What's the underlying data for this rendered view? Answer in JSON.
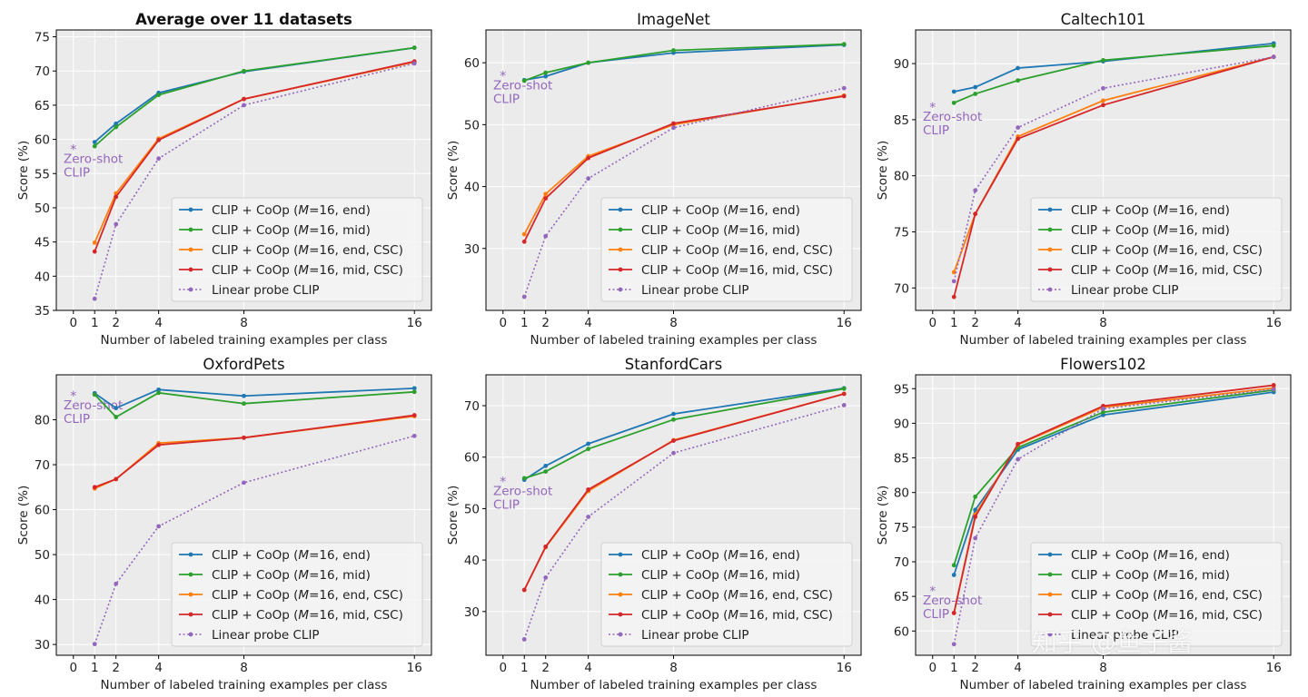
{
  "figure": {
    "colors": {
      "end": "#1f77b4",
      "mid": "#2ca02c",
      "end_csc": "#ff7f0e",
      "mid_csc": "#d62728",
      "linear": "#9467bd",
      "zeroshot": "#9467bd",
      "panel_bg": "#ebebeb",
      "grid": "#ffffff"
    },
    "watermark": "知乎 @鱼子酱"
  },
  "chart_data": [
    {
      "type": "line",
      "title": "Average over 11 datasets",
      "title_bold": true,
      "xlabel": "Number of labeled training examples per class",
      "ylabel": "Score (%)",
      "x": [
        1,
        2,
        4,
        8,
        16
      ],
      "xticks": [
        0,
        1,
        2,
        4,
        8,
        16
      ],
      "yticks": [
        35,
        40,
        45,
        50,
        55,
        60,
        65,
        70,
        75
      ],
      "ylim": [
        35,
        76
      ],
      "zero_shot": {
        "value": 58.8,
        "label": [
          "Zero-shot",
          "CLIP"
        ]
      },
      "legend_loc": "lower-right",
      "series": [
        {
          "key": "end",
          "name": "CLIP + CoOp (M=16, end)",
          "values": [
            59.6,
            62.3,
            66.8,
            69.9,
            73.4
          ]
        },
        {
          "key": "mid",
          "name": "CLIP + CoOp (M=16, mid)",
          "values": [
            59.0,
            61.8,
            66.5,
            70.0,
            73.4
          ]
        },
        {
          "key": "end_csc",
          "name": "CLIP + CoOp (M=16, end, CSC)",
          "values": [
            44.9,
            52.1,
            60.1,
            65.9,
            71.3
          ]
        },
        {
          "key": "mid_csc",
          "name": "CLIP + CoOp (M=16, mid, CSC)",
          "values": [
            43.6,
            51.6,
            59.9,
            65.9,
            71.4
          ]
        },
        {
          "key": "linear",
          "name": "Linear probe CLIP",
          "dashed": true,
          "values": [
            36.7,
            47.6,
            57.2,
            65.0,
            71.1
          ]
        }
      ]
    },
    {
      "type": "line",
      "title": "ImageNet",
      "title_bold": false,
      "xlabel": "Number of labeled training examples per class",
      "ylabel": "Score (%)",
      "x": [
        1,
        2,
        4,
        8,
        16
      ],
      "xticks": [
        0,
        1,
        2,
        4,
        8,
        16
      ],
      "yticks": [
        30,
        40,
        50,
        60
      ],
      "ylim": [
        20,
        65.3
      ],
      "zero_shot": {
        "value": 58.2,
        "label": [
          "Zero-shot",
          "CLIP"
        ]
      },
      "legend_loc": "lower-right",
      "series": [
        {
          "key": "end",
          "name": "CLIP + CoOp (M=16, end)",
          "values": [
            57.2,
            57.8,
            60.0,
            61.6,
            62.9
          ]
        },
        {
          "key": "mid",
          "name": "CLIP + CoOp (M=16, mid)",
          "values": [
            57.1,
            58.4,
            60.0,
            62.0,
            63.0
          ]
        },
        {
          "key": "end_csc",
          "name": "CLIP + CoOp (M=16, end, CSC)",
          "values": [
            32.3,
            38.8,
            44.9,
            50.0,
            54.7
          ]
        },
        {
          "key": "mid_csc",
          "name": "CLIP + CoOp (M=16, mid, CSC)",
          "values": [
            31.1,
            38.1,
            44.6,
            50.2,
            54.6
          ]
        },
        {
          "key": "linear",
          "name": "Linear probe CLIP",
          "dashed": true,
          "values": [
            22.2,
            32.0,
            41.3,
            49.5,
            55.9
          ]
        }
      ]
    },
    {
      "type": "line",
      "title": "Caltech101",
      "title_bold": false,
      "xlabel": "Number of labeled training examples per class",
      "ylabel": "Score (%)",
      "x": [
        1,
        2,
        4,
        8,
        16
      ],
      "xticks": [
        0,
        1,
        2,
        4,
        8,
        16
      ],
      "yticks": [
        70,
        75,
        80,
        85,
        90
      ],
      "ylim": [
        68,
        93
      ],
      "zero_shot": {
        "value": 86.3,
        "label": [
          "Zero-shot",
          "CLIP"
        ]
      },
      "legend_loc": "lower-right",
      "series": [
        {
          "key": "end",
          "name": "CLIP + CoOp (M=16, end)",
          "values": [
            87.5,
            87.9,
            89.6,
            90.2,
            91.8
          ]
        },
        {
          "key": "mid",
          "name": "CLIP + CoOp (M=16, mid)",
          "values": [
            86.5,
            87.3,
            88.5,
            90.3,
            91.6
          ]
        },
        {
          "key": "end_csc",
          "name": "CLIP + CoOp (M=16, end, CSC)",
          "values": [
            71.4,
            76.6,
            83.5,
            86.7,
            90.6
          ]
        },
        {
          "key": "mid_csc",
          "name": "CLIP + CoOp (M=16, mid, CSC)",
          "values": [
            69.2,
            76.6,
            83.3,
            86.3,
            90.6
          ]
        },
        {
          "key": "linear",
          "name": "Linear probe CLIP",
          "dashed": true,
          "values": [
            70.6,
            78.7,
            84.3,
            87.8,
            90.6
          ]
        }
      ]
    },
    {
      "type": "line",
      "title": "OxfordPets",
      "title_bold": false,
      "xlabel": "Number of labeled training examples per class",
      "ylabel": "Score (%)",
      "x": [
        1,
        2,
        4,
        8,
        16
      ],
      "xticks": [
        0,
        1,
        2,
        4,
        8,
        16
      ],
      "yticks": [
        30,
        40,
        50,
        60,
        70,
        80
      ],
      "ylim": [
        27.6,
        90
      ],
      "zero_shot": {
        "value": 85.8,
        "label": [
          "Zero-shot",
          "CLIP"
        ]
      },
      "legend_loc": "lower-right",
      "series": [
        {
          "key": "end",
          "name": "CLIP + CoOp (M=16, end)",
          "values": [
            85.9,
            82.6,
            86.7,
            85.3,
            87.0
          ]
        },
        {
          "key": "mid",
          "name": "CLIP + CoOp (M=16, mid)",
          "values": [
            85.6,
            80.6,
            86.0,
            83.6,
            86.2
          ]
        },
        {
          "key": "end_csc",
          "name": "CLIP + CoOp (M=16, end, CSC)",
          "values": [
            64.7,
            66.8,
            74.8,
            76.0,
            80.8
          ]
        },
        {
          "key": "mid_csc",
          "name": "CLIP + CoOp (M=16, mid, CSC)",
          "values": [
            65.0,
            66.8,
            74.4,
            76.0,
            81.0
          ]
        },
        {
          "key": "linear",
          "name": "Linear probe CLIP",
          "dashed": true,
          "values": [
            30.1,
            43.5,
            56.3,
            66.0,
            76.4
          ]
        }
      ]
    },
    {
      "type": "line",
      "title": "StanfordCars",
      "title_bold": false,
      "xlabel": "Number of labeled training examples per class",
      "ylabel": "Score (%)",
      "x": [
        1,
        2,
        4,
        8,
        16
      ],
      "xticks": [
        0,
        1,
        2,
        4,
        8,
        16
      ],
      "yticks": [
        30,
        40,
        50,
        60,
        70
      ],
      "ylim": [
        21.5,
        76
      ],
      "zero_shot": {
        "value": 55.6,
        "label": [
          "Zero-shot",
          "CLIP"
        ]
      },
      "legend_loc": "lower-right",
      "series": [
        {
          "key": "end",
          "name": "CLIP + CoOp (M=16, end)",
          "values": [
            55.6,
            58.3,
            62.6,
            68.4,
            73.4
          ]
        },
        {
          "key": "mid",
          "name": "CLIP + CoOp (M=16, mid)",
          "values": [
            55.9,
            57.2,
            61.6,
            67.3,
            73.3
          ]
        },
        {
          "key": "end_csc",
          "name": "CLIP + CoOp (M=16, end, CSC)",
          "values": [
            34.2,
            42.5,
            53.4,
            63.3,
            72.3
          ]
        },
        {
          "key": "mid_csc",
          "name": "CLIP + CoOp (M=16, mid, CSC)",
          "values": [
            34.2,
            42.6,
            53.7,
            63.2,
            72.3
          ]
        },
        {
          "key": "linear",
          "name": "Linear probe CLIP",
          "dashed": true,
          "values": [
            24.6,
            36.6,
            48.4,
            60.8,
            70.1
          ]
        }
      ]
    },
    {
      "type": "line",
      "title": "Flowers102",
      "title_bold": false,
      "xlabel": "Number of labeled training examples per class",
      "ylabel": "Score (%)",
      "x": [
        1,
        2,
        4,
        8,
        16
      ],
      "xticks": [
        0,
        1,
        2,
        4,
        8,
        16
      ],
      "yticks": [
        60,
        65,
        70,
        75,
        80,
        85,
        90,
        95
      ],
      "ylim": [
        56.5,
        97
      ],
      "zero_shot": {
        "value": 66.1,
        "label": [
          "Zero-shot",
          "CLIP"
        ]
      },
      "legend_loc": "lower-right",
      "series": [
        {
          "key": "end",
          "name": "CLIP + CoOp (M=16, end)",
          "values": [
            68.1,
            77.5,
            86.2,
            91.2,
            94.5
          ]
        },
        {
          "key": "mid",
          "name": "CLIP + CoOp (M=16, mid)",
          "values": [
            69.5,
            79.4,
            86.5,
            91.6,
            94.8
          ]
        },
        {
          "key": "end_csc",
          "name": "CLIP + CoOp (M=16, end, CSC)",
          "values": [
            62.6,
            76.8,
            86.9,
            92.3,
            95.1
          ]
        },
        {
          "key": "mid_csc",
          "name": "CLIP + CoOp (M=16, mid, CSC)",
          "values": [
            62.6,
            76.5,
            87.0,
            92.5,
            95.5
          ]
        },
        {
          "key": "linear",
          "name": "Linear probe CLIP",
          "dashed": true,
          "values": [
            58.1,
            73.4,
            84.8,
            92.1,
            94.9
          ]
        }
      ]
    }
  ]
}
